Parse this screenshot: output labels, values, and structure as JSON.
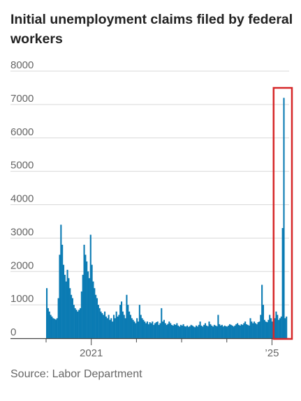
{
  "title": "Initial unemployment claims filed by federal workers",
  "source": "Source: Labor Department",
  "colors": {
    "bar": "#0b7bb3",
    "grid": "#d9d9d9",
    "highlight": "#d62728",
    "text": "#666666"
  },
  "chart_data": {
    "type": "bar",
    "title": "Initial unemployment claims filed by federal workers",
    "xlabel": "",
    "ylabel": "",
    "ylim": [
      0,
      8000
    ],
    "y_ticks": [
      0,
      1000,
      2000,
      3000,
      4000,
      5000,
      6000,
      7000,
      8000
    ],
    "x_tick_labels": [
      "2021",
      "’25"
    ],
    "grid": true,
    "x_range": [
      "2020-01",
      "2025-05"
    ],
    "highlight": {
      "start": "2025-02",
      "end": "2025-05"
    },
    "series": [
      {
        "values": [
          1500,
          900,
          800,
          700,
          650,
          600,
          580,
          560,
          600,
          1200,
          2500,
          3400,
          2800,
          2200,
          1900,
          1700,
          2050,
          1800,
          1500,
          1300,
          1200,
          1000,
          900,
          850,
          800,
          850,
          900,
          1400,
          1900,
          2800,
          2500,
          2300,
          2000,
          1800,
          3100,
          2200,
          1700,
          1500,
          1300,
          1200,
          1000,
          900,
          800,
          750,
          700,
          800,
          650,
          600,
          700,
          550,
          600,
          500,
          700,
          600,
          800,
          650,
          700,
          1000,
          1100,
          800,
          700,
          600,
          1300,
          1000,
          800,
          700,
          600,
          550,
          500,
          450,
          600,
          500,
          1000,
          700,
          600,
          550,
          500,
          450,
          500,
          420,
          480,
          450,
          500,
          400,
          450,
          480,
          500,
          400,
          450,
          900,
          500,
          550,
          450,
          400,
          430,
          500,
          450,
          400,
          380,
          420,
          400,
          450,
          380,
          350,
          400,
          380,
          420,
          360,
          350,
          380,
          340,
          360,
          400,
          380,
          350,
          330,
          380,
          350,
          400,
          500,
          380,
          350,
          400,
          450,
          380,
          360,
          500,
          420,
          380,
          350,
          400,
          380,
          360,
          700,
          420,
          380,
          400,
          350,
          380,
          360,
          350,
          380,
          420,
          400,
          380,
          350,
          380,
          420,
          450,
          400,
          380,
          420,
          400,
          450,
          500,
          420,
          400,
          380,
          600,
          500,
          450,
          500,
          450,
          420,
          480,
          500,
          700,
          1600,
          1000,
          550,
          500,
          480,
          550,
          700,
          600,
          500,
          550,
          600,
          800,
          700,
          550,
          600,
          650,
          3300,
          7200,
          600,
          650
        ]
      }
    ]
  }
}
